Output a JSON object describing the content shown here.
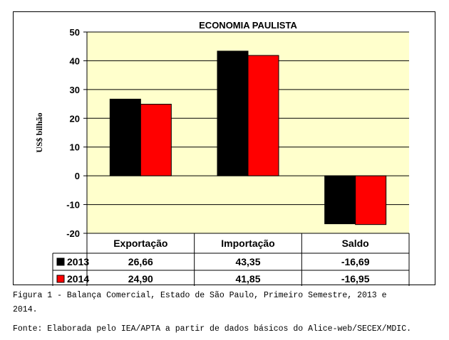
{
  "chart_data": {
    "type": "bar",
    "title": "ECONOMIA PAULISTA",
    "ylabel": "US$ bilhão",
    "xlabel": "",
    "ylim": [
      -20,
      50
    ],
    "yticks": [
      "50",
      "40",
      "30",
      "20",
      "10",
      "0",
      "-10",
      "-20"
    ],
    "grid": true,
    "plot_background": "#ffffcc",
    "categories": [
      "Exportação",
      "Importação",
      "Saldo"
    ],
    "series": [
      {
        "name": "2013",
        "color": "#000000",
        "values": [
          26.66,
          43.35,
          -16.69
        ],
        "labels": [
          "26,66",
          "43,35",
          "-16,69"
        ]
      },
      {
        "name": "2014",
        "color": "#ff0000",
        "values": [
          24.9,
          41.85,
          -16.95
        ],
        "labels": [
          "24,90",
          "41,85",
          "-16,95"
        ]
      }
    ],
    "legend_placement": "data-table"
  },
  "caption": {
    "line1": "Figura 1 - Balança Comercial, Estado de São Paulo, Primeiro Semestre, 2013 e",
    "line2": "2014.",
    "source": "Fonte: Elaborada pelo IEA/APTA a partir de dados básicos do Alice-web/SECEX/MDIC."
  }
}
